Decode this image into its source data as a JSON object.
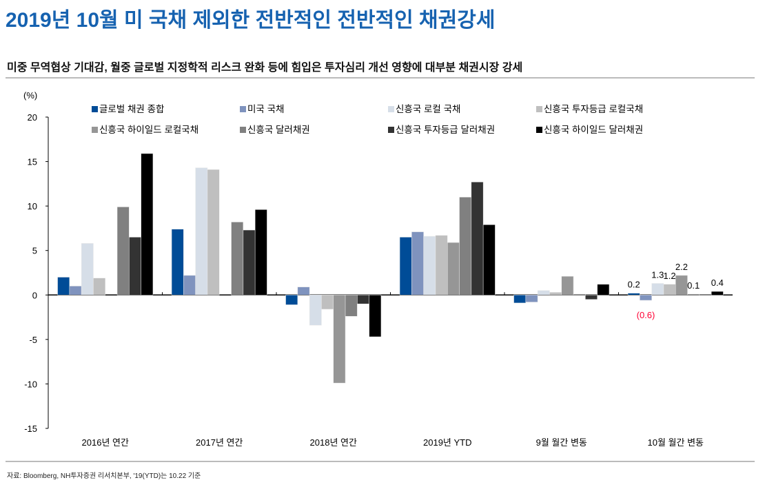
{
  "title": "2019년 10월 미 국채 제외한 전반적인 전반적인 채권강세",
  "subtitle": "미중 무역협상 기대감, 월중 글로벌 지정학적 리스크 완화 등에 힘입은 투자심리 개선 영향에 대부분 채권시장 강세",
  "source": "자료: Bloomberg, NH투자증권 리서치본부, '19(YTD)는 10.22 기준",
  "chart_data": {
    "type": "bar",
    "ylabel": "(%)",
    "ylim": [
      -15,
      20
    ],
    "yticks": [
      20,
      15,
      10,
      5,
      0,
      -5,
      -10,
      -15
    ],
    "legend_position": "top",
    "categories": [
      "2016년 연간",
      "2017년 연간",
      "2018년 연간",
      "2019년 YTD",
      "9월 월간 변동",
      "10월 월간 변동"
    ],
    "series": [
      {
        "name": "글로벌 채권 종합",
        "color": "#004c97",
        "values": [
          2.0,
          7.4,
          -1.1,
          6.5,
          -0.9,
          0.2
        ]
      },
      {
        "name": "미국 국채",
        "color": "#7f93be",
        "values": [
          1.0,
          2.2,
          0.9,
          7.1,
          -0.8,
          -0.6
        ]
      },
      {
        "name": "신흥국 로컬 국채",
        "color": "#d6dee8",
        "values": [
          5.8,
          14.3,
          -3.4,
          6.6,
          0.5,
          1.3
        ]
      },
      {
        "name": "신흥국 투자등급 로컬국채",
        "color": "#bfbfbf",
        "values": [
          1.9,
          14.1,
          -1.6,
          6.7,
          0.3,
          1.2
        ]
      },
      {
        "name": "신흥국 하이일드 로컬국채",
        "color": "#969696",
        "values": [
          null,
          null,
          -9.9,
          5.9,
          2.1,
          2.2
        ]
      },
      {
        "name": "신흥국 달러채권",
        "color": "#808080",
        "values": [
          9.9,
          8.2,
          -2.4,
          11.0,
          0.1,
          0.1
        ]
      },
      {
        "name": "신흥국 투자등급 달러채권",
        "color": "#333333",
        "values": [
          6.5,
          7.3,
          -1.0,
          12.7,
          -0.5,
          0.0
        ]
      },
      {
        "name": "신흥국 하이일드 달러채권",
        "color": "#000000",
        "values": [
          15.9,
          9.6,
          -4.7,
          7.9,
          1.2,
          0.4
        ]
      }
    ],
    "data_labels": {
      "category": "10월 월간 변동",
      "labels": [
        "0.2",
        "(0.6)",
        "1.3",
        "1.2",
        "2.2",
        "0.1",
        "",
        "0.4"
      ],
      "negative_color": "#ff0033"
    }
  }
}
